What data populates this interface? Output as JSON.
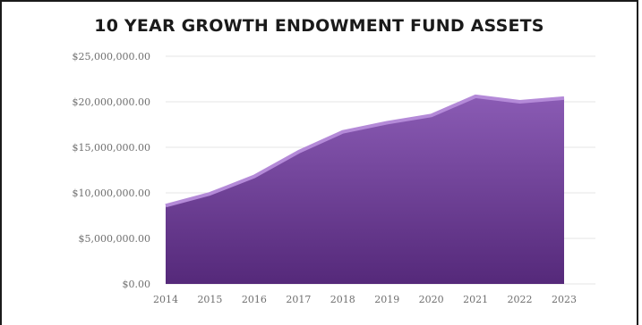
{
  "chart_data": {
    "type": "area",
    "title": "10 YEAR GROWTH ENDOWMENT FUND ASSETS",
    "xlabel": "",
    "ylabel": "",
    "x": [
      "2014",
      "2015",
      "2016",
      "2017",
      "2018",
      "2019",
      "2020",
      "2021",
      "2022",
      "2023"
    ],
    "series": [
      {
        "values": [
          8600000,
          9900000,
          11800000,
          14500000,
          16700000,
          17700000,
          18500000,
          20600000,
          20000000,
          20400000
        ]
      }
    ],
    "y_ticks": [
      "$0.00",
      "$5,000,000.00",
      "$10,000,000.00",
      "$15,000,000.00",
      "$20,000,000.00",
      "$25,000,000.00"
    ],
    "ylim": [
      0,
      25000000
    ],
    "grid": true,
    "colors": {
      "fill_top": "#8a5bb4",
      "fill_bottom": "#55297a",
      "edge": "#b48ad8",
      "grid": "#e6e6e6"
    }
  }
}
